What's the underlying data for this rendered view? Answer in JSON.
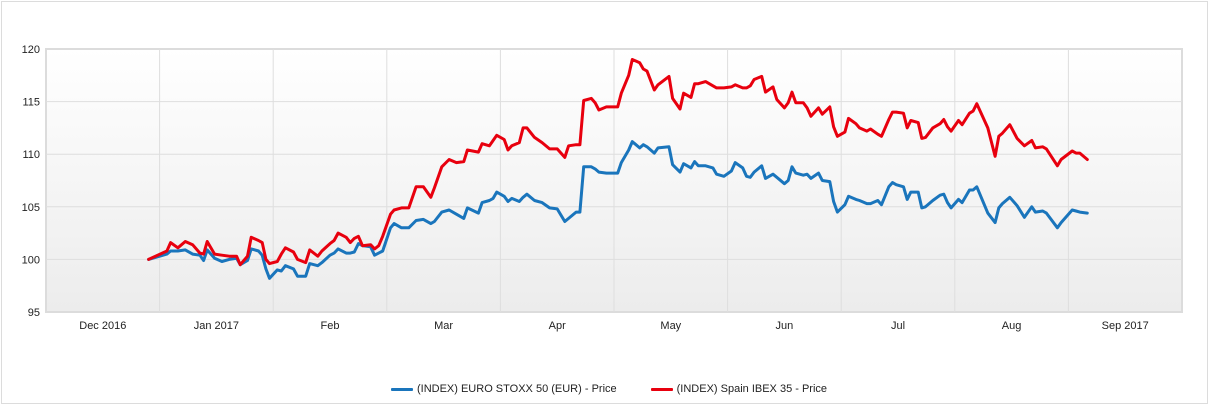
{
  "chart_data": {
    "type": "line",
    "title": "",
    "xlabel": "",
    "ylabel": "",
    "ylim": [
      95,
      120
    ],
    "xlim": [
      "2016-12-01",
      "2017-10-01"
    ],
    "yticks": [
      "95",
      "100",
      "105",
      "110",
      "115",
      "120"
    ],
    "xticks": [
      {
        "label": "Dec 2016",
        "month": "2016-12"
      },
      {
        "label": "Jan 2017",
        "month": "2017-01"
      },
      {
        "label": "Feb",
        "month": "2017-02"
      },
      {
        "label": "Mar",
        "month": "2017-03"
      },
      {
        "label": "Apr",
        "month": "2017-04"
      },
      {
        "label": "May",
        "month": "2017-05"
      },
      {
        "label": "Jun",
        "month": "2017-06"
      },
      {
        "label": "Jul",
        "month": "2017-07"
      },
      {
        "label": "Aug",
        "month": "2017-08"
      },
      {
        "label": "Sep 2017",
        "month": "2017-09"
      }
    ],
    "grid": true,
    "legend_position": "bottom",
    "x": [
      "2016-12-29",
      "2017-01-03",
      "2017-01-04",
      "2017-01-06",
      "2017-01-08",
      "2017-01-10",
      "2017-01-12",
      "2017-01-13",
      "2017-01-14",
      "2017-01-16",
      "2017-01-18",
      "2017-01-20",
      "2017-01-22",
      "2017-01-23",
      "2017-01-25",
      "2017-01-26",
      "2017-01-28",
      "2017-01-29",
      "2017-01-30",
      "2017-01-31",
      "2017-02-02",
      "2017-02-03",
      "2017-02-04",
      "2017-02-06",
      "2017-02-07",
      "2017-02-09",
      "2017-02-10",
      "2017-02-12",
      "2017-02-13",
      "2017-02-15",
      "2017-02-16",
      "2017-02-17",
      "2017-02-19",
      "2017-02-20",
      "2017-02-21",
      "2017-02-22",
      "2017-02-23",
      "2017-02-25",
      "2017-02-26",
      "2017-02-27",
      "2017-02-28",
      "2017-03-02",
      "2017-03-03",
      "2017-03-05",
      "2017-03-07",
      "2017-03-09",
      "2017-03-11",
      "2017-03-13",
      "2017-03-14",
      "2017-03-16",
      "2017-03-18",
      "2017-03-20",
      "2017-03-22",
      "2017-03-23",
      "2017-03-26",
      "2017-03-27",
      "2017-03-29",
      "2017-03-30",
      "2017-03-31",
      "2017-04-02",
      "2017-04-03",
      "2017-04-04",
      "2017-04-06",
      "2017-04-07",
      "2017-04-08",
      "2017-04-10",
      "2017-04-12",
      "2017-04-14",
      "2017-04-16",
      "2017-04-18",
      "2017-04-19",
      "2017-04-21",
      "2017-04-22",
      "2017-04-23",
      "2017-04-25",
      "2017-04-26",
      "2017-04-27",
      "2017-04-29",
      "2017-05-02",
      "2017-05-03",
      "2017-05-05",
      "2017-05-06",
      "2017-05-08",
      "2017-05-09",
      "2017-05-10",
      "2017-05-12",
      "2017-05-13",
      "2017-05-16",
      "2017-05-17",
      "2017-05-19",
      "2017-05-20",
      "2017-05-22",
      "2017-05-23",
      "2017-05-24",
      "2017-05-26",
      "2017-05-28",
      "2017-05-29",
      "2017-05-31",
      "2017-06-02",
      "2017-06-03",
      "2017-06-05",
      "2017-06-06",
      "2017-06-07",
      "2017-06-08",
      "2017-06-10",
      "2017-06-11",
      "2017-06-13",
      "2017-06-14",
      "2017-06-16",
      "2017-06-17",
      "2017-06-18",
      "2017-06-19",
      "2017-06-21",
      "2017-06-22",
      "2017-06-23",
      "2017-06-25",
      "2017-06-26",
      "2017-06-28",
      "2017-06-29",
      "2017-06-30",
      "2017-07-02",
      "2017-07-03",
      "2017-07-05",
      "2017-07-06",
      "2017-07-08",
      "2017-07-09",
      "2017-07-11",
      "2017-07-12",
      "2017-07-14",
      "2017-07-15",
      "2017-07-16",
      "2017-07-18",
      "2017-07-19",
      "2017-07-20",
      "2017-07-22",
      "2017-07-23",
      "2017-07-24",
      "2017-07-26",
      "2017-07-28",
      "2017-07-29",
      "2017-07-30",
      "2017-07-31",
      "2017-08-02",
      "2017-08-03",
      "2017-08-05",
      "2017-08-06",
      "2017-08-07",
      "2017-08-10",
      "2017-08-12",
      "2017-08-13",
      "2017-08-14",
      "2017-08-16",
      "2017-08-18",
      "2017-08-20",
      "2017-08-22",
      "2017-08-23",
      "2017-08-25",
      "2017-08-26",
      "2017-08-29",
      "2017-08-30",
      "2017-09-02",
      "2017-09-03",
      "2017-09-04",
      "2017-09-06"
    ],
    "series": [
      {
        "name": "(INDEX) EURO STOXX 50 (EUR) - Price",
        "color": "#1a75bc",
        "values": [
          100,
          100.5,
          100.8,
          100.8,
          100.9,
          100.5,
          100.4,
          99.9,
          100.9,
          100.1,
          99.8,
          100.0,
          100.1,
          99.5,
          99.9,
          101.0,
          100.8,
          100.4,
          99.1,
          98.2,
          99.0,
          98.9,
          99.4,
          99.1,
          98.4,
          98.4,
          99.6,
          99.4,
          99.7,
          100.4,
          100.6,
          101.0,
          100.6,
          100.6,
          100.7,
          101.5,
          101.3,
          101.2,
          100.4,
          100.6,
          100.8,
          103.0,
          103.4,
          103.0,
          103.0,
          103.7,
          103.8,
          103.4,
          103.6,
          104.5,
          104.7,
          104.3,
          103.9,
          104.9,
          104.4,
          105.4,
          105.6,
          105.8,
          106.4,
          106.0,
          105.5,
          105.8,
          105.5,
          105.9,
          106.2,
          105.6,
          105.4,
          104.9,
          104.8,
          103.6,
          103.9,
          104.5,
          104.5,
          108.8,
          108.8,
          108.6,
          108.3,
          108.2,
          108.2,
          109.2,
          110.4,
          111.2,
          110.6,
          110.9,
          110.7,
          110.1,
          110.6,
          110.7,
          109.0,
          108.3,
          109.1,
          108.7,
          109.3,
          108.9,
          108.9,
          108.7,
          108.1,
          107.9,
          108.4,
          109.2,
          108.7,
          107.9,
          107.8,
          108.3,
          108.9,
          107.7,
          108.1,
          107.8,
          107.2,
          107.5,
          108.8,
          108.2,
          108.0,
          108.1,
          107.7,
          108.2,
          107.5,
          107.4,
          105.5,
          104.5,
          105.2,
          106.0,
          105.7,
          105.6,
          105.3,
          105.3,
          105.6,
          105.2,
          106.9,
          107.3,
          107.1,
          106.9,
          105.7,
          106.4,
          106.4,
          104.9,
          105.0,
          105.6,
          106.1,
          106.2,
          105.4,
          104.9,
          105.7,
          105.4,
          106.6,
          106.6,
          106.9,
          104.4,
          103.5,
          104.9,
          105.3,
          105.9,
          105.1,
          104.0,
          105.0,
          104.5,
          104.6,
          104.4,
          103.0,
          103.5,
          104.7,
          104.6,
          104.5,
          104.4
        ]
      },
      {
        "name": "(INDEX) Spain IBEX 35 - Price",
        "color": "#e8000e",
        "values": [
          100,
          100.8,
          101.6,
          101.1,
          101.7,
          101.4,
          100.6,
          100.5,
          101.7,
          100.5,
          100.4,
          100.3,
          100.3,
          99.5,
          100.3,
          102.1,
          101.8,
          101.6,
          100.0,
          99.6,
          99.8,
          100.5,
          101.1,
          100.7,
          100.0,
          99.7,
          100.9,
          100.3,
          100.8,
          101.5,
          101.8,
          102.5,
          102.1,
          101.6,
          102.0,
          102.2,
          101.3,
          101.4,
          101.0,
          101.3,
          102.2,
          104.3,
          104.7,
          104.9,
          104.9,
          106.9,
          106.9,
          105.9,
          106.8,
          108.8,
          109.5,
          109.2,
          109.3,
          110.4,
          110.2,
          111.0,
          110.8,
          111.3,
          111.8,
          111.4,
          110.4,
          110.8,
          111.1,
          112.5,
          112.5,
          111.6,
          111.1,
          110.5,
          110.5,
          109.7,
          110.8,
          110.9,
          110.9,
          115.1,
          115.3,
          114.9,
          114.2,
          114.5,
          114.5,
          115.8,
          117.5,
          119.0,
          118.7,
          118.1,
          117.9,
          116.1,
          116.6,
          117.4,
          115.3,
          114.3,
          115.8,
          115.4,
          116.7,
          116.7,
          116.9,
          116.5,
          116.3,
          116.3,
          116.4,
          116.6,
          116.3,
          116.3,
          116.5,
          117.1,
          117.4,
          115.9,
          116.4,
          115.2,
          114.4,
          114.9,
          115.9,
          114.9,
          114.9,
          114.4,
          113.6,
          114.4,
          113.8,
          114.5,
          112.6,
          111.7,
          112.1,
          113.4,
          112.9,
          112.5,
          112.2,
          112.4,
          111.9,
          111.7,
          113.3,
          114.0,
          114.0,
          113.9,
          112.5,
          113.2,
          113.0,
          111.5,
          111.6,
          112.5,
          112.9,
          113.3,
          112.6,
          112.2,
          113.2,
          112.8,
          113.9,
          114.1,
          114.8,
          112.5,
          109.8,
          111.7,
          112.0,
          112.8,
          111.5,
          110.8,
          111.3,
          110.6,
          110.7,
          110.5,
          108.9,
          109.5,
          110.3,
          110.1,
          110.1,
          109.5
        ]
      }
    ]
  }
}
